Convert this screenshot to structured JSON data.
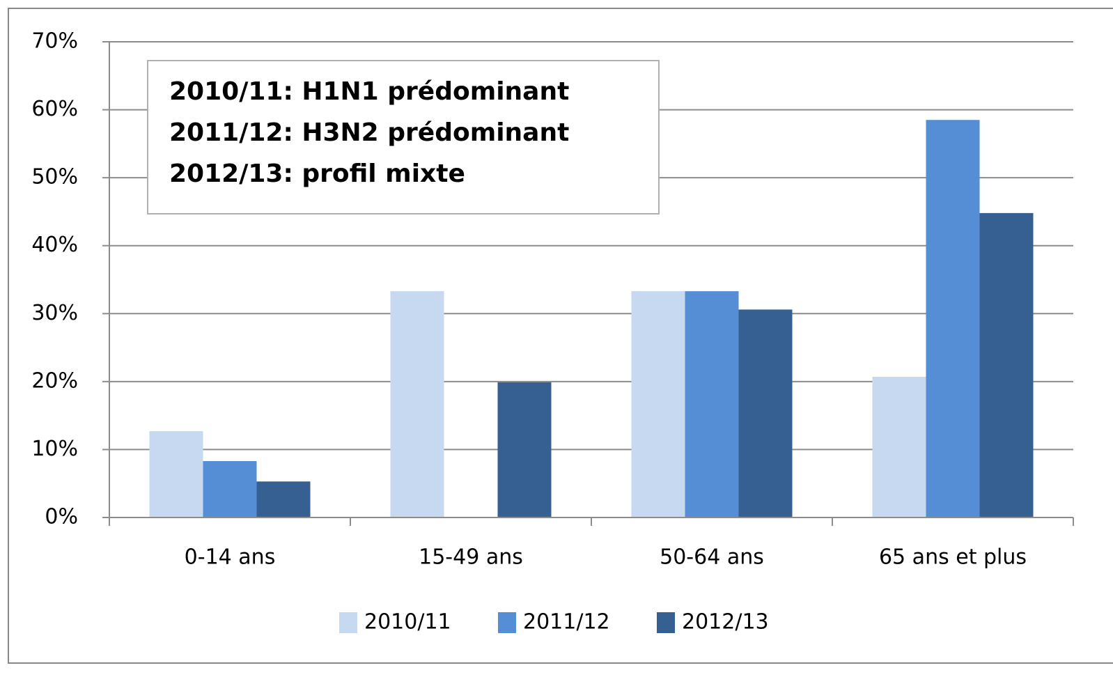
{
  "chart_data": {
    "type": "bar",
    "categories": [
      "0-14 ans",
      "15-49 ans",
      "50-64 ans",
      "65 ans et plus"
    ],
    "series": [
      {
        "name": "2010/11",
        "color": "#c6d9f1",
        "values": [
          12.7,
          33.3,
          33.3,
          20.7
        ]
      },
      {
        "name": "2011/12",
        "color": "#558ed5",
        "values": [
          8.3,
          0,
          33.3,
          58.5
        ]
      },
      {
        "name": "2012/13",
        "color": "#376092",
        "values": [
          5.3,
          19.9,
          30.6,
          44.8
        ]
      }
    ],
    "ylim": [
      0,
      70
    ],
    "yticks": [
      {
        "value": 0,
        "label": "0%"
      },
      {
        "value": 10,
        "label": "10%"
      },
      {
        "value": 20,
        "label": "20%"
      },
      {
        "value": 30,
        "label": "30%"
      },
      {
        "value": 40,
        "label": "40%"
      },
      {
        "value": 50,
        "label": "50%"
      },
      {
        "value": 60,
        "label": "60%"
      },
      {
        "value": 70,
        "label": "70%"
      }
    ],
    "grid": true,
    "legend": "bottom",
    "annotations": [
      "2010/11:  H1N1 prédominant",
      "2011/12:  H3N2 prédominant",
      "2012/13:  profil mixte"
    ]
  }
}
